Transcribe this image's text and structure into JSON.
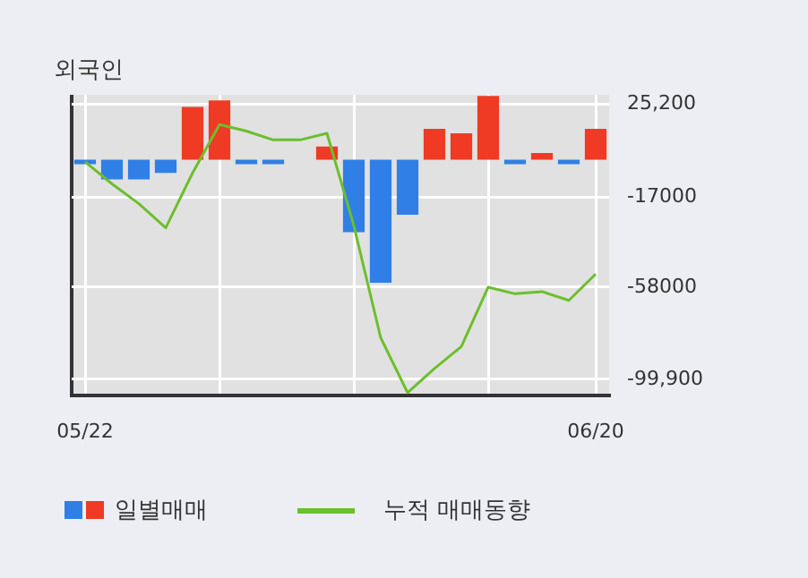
{
  "chart_data": {
    "type": "bar",
    "title": "외국인",
    "categories": [
      "05/22",
      null,
      null,
      null,
      null,
      null,
      null,
      null,
      null,
      null,
      null,
      null,
      null,
      null,
      null,
      null,
      null,
      null,
      null,
      "06/20"
    ],
    "series": [
      {
        "name": "일별매매",
        "colors": [
          "#2f7fe6",
          "#2f7fe6",
          "#2f7fe6",
          "#2f7fe6",
          "#ef3a24",
          "#ef3a24",
          "#2f7fe6",
          "#2f7fe6",
          "#ef3a24",
          "#ef3a24",
          "#2f7fe6",
          "#2f7fe6",
          "#2f7fe6",
          "#ef3a24",
          "#ef3a24",
          "#ef3a24",
          "#2f7fe6",
          "#ef3a24",
          "#2f7fe6",
          "#ef3a24"
        ],
        "values": [
          -2000,
          -9000,
          -9000,
          -6000,
          24000,
          27000,
          -2000,
          -2000,
          0,
          6000,
          -33000,
          -56000,
          -25000,
          14000,
          12000,
          29000,
          -2000,
          3000,
          -2000,
          14000
        ]
      },
      {
        "name": "누적 매매동향",
        "type": "line",
        "color": "#6cbf2c",
        "values": [
          -1000,
          -11000,
          -20000,
          -31000,
          -6000,
          16000,
          13000,
          9000,
          9000,
          12000,
          -30000,
          -81000,
          -106000,
          -95000,
          -85000,
          -58000,
          -61000,
          -60000,
          -64000,
          -52000
        ]
      }
    ],
    "ylim": [
      -107100,
      29500
    ],
    "yticks": [
      {
        "value": 25200,
        "label": "25,200"
      },
      {
        "value": -17000,
        "label": "-17000"
      },
      {
        "value": -58000,
        "label": "-58000"
      },
      {
        "value": -99900,
        "label": "-99,900"
      }
    ],
    "grid": true,
    "legend": "bottom",
    "marker": "none"
  }
}
